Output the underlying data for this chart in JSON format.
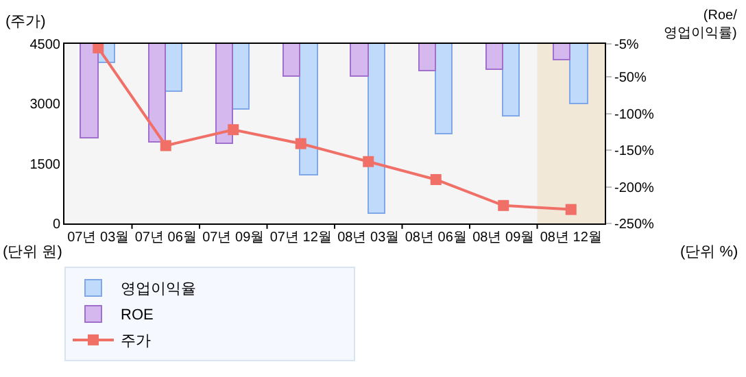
{
  "chart_data": {
    "type": "bar",
    "categories": [
      "07년 03월",
      "07년 06월",
      "07년 09월",
      "07년 12월",
      "08년 03월",
      "08년 06월",
      "08년 09월",
      "08년 12월"
    ],
    "series": [
      {
        "name": "영업이익율",
        "axis": "y2",
        "color": "#c0dafc",
        "base": [
          -5,
          -5,
          -5,
          -5,
          -5,
          -5,
          -5,
          -5
        ],
        "values": [
          -27,
          -65,
          -89,
          -180,
          -232,
          -124,
          -100,
          -82
        ]
      },
      {
        "name": "ROE",
        "axis": "y2",
        "color": "#d5b8ee",
        "base": [
          -5,
          -5,
          -5,
          -5,
          -5,
          -5,
          -5,
          -5
        ],
        "values": [
          -129,
          -134,
          -136,
          -44,
          -45,
          -37,
          -35,
          -22
        ]
      },
      {
        "name": "주가",
        "type": "line",
        "color": "#f07068",
        "marker": "square",
        "values": [
          4400,
          1950,
          2350,
          2000,
          1550,
          1100,
          450,
          350
        ]
      }
    ],
    "ylabel": "(주가)",
    "y2label": "(Roe/\n영업이익률)",
    "ylim": [
      0,
      4500
    ],
    "yticks": [
      0,
      1500,
      3000,
      4500
    ],
    "y2lim": [
      -250,
      -5
    ],
    "y2ticks": [
      {
        "value": -5,
        "label": "-5%"
      },
      {
        "value": -50,
        "label": "-50%"
      },
      {
        "value": -100,
        "label": "-100%"
      },
      {
        "value": -150,
        "label": "-150%"
      },
      {
        "value": -200,
        "label": "-200%"
      },
      {
        "value": -250,
        "label": "-250%"
      }
    ],
    "bands": [
      {
        "axis": "x",
        "from": "08년 12월",
        "to": "08년 12월",
        "color": "#f2e8d8"
      }
    ],
    "annotations": [
      "(단위 원)",
      "(단위 %)"
    ],
    "legend": "bottom",
    "grid": false
  }
}
